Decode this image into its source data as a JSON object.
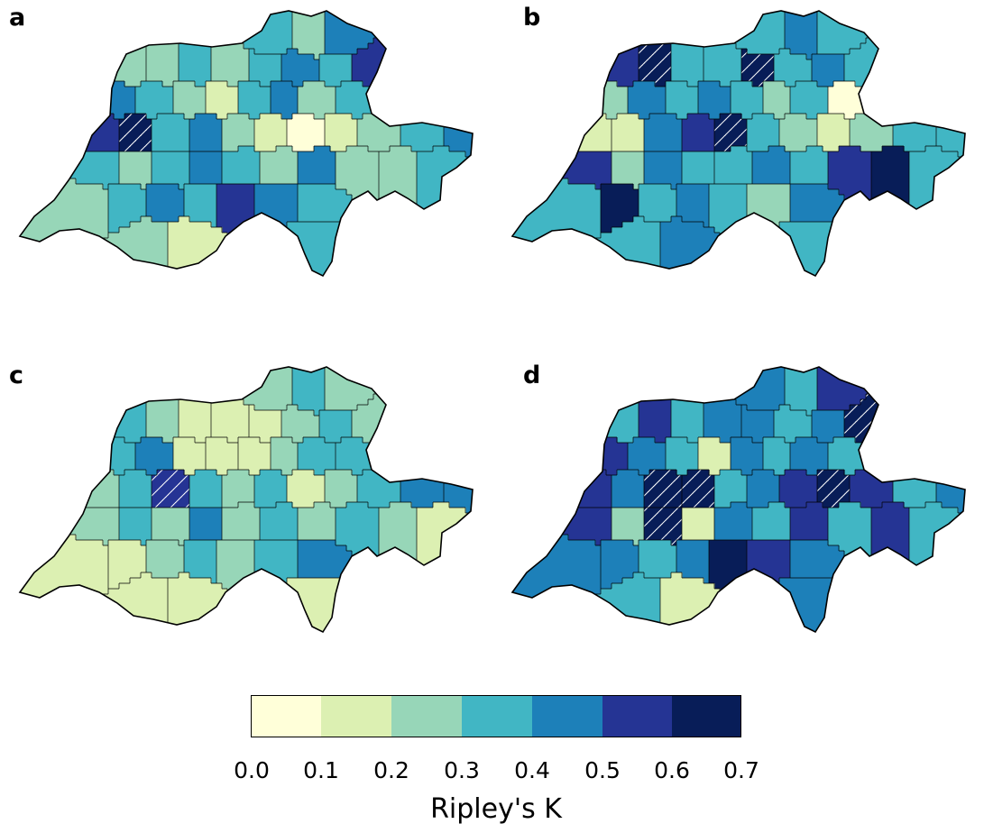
{
  "panels": [
    {
      "label": "a",
      "values": [
        0.3,
        0.2,
        0.4,
        0.2,
        0.2,
        0.3,
        0.2,
        0.3,
        0.4,
        0.3,
        0.5,
        0.4,
        0.3,
        0.2,
        0.1,
        0.3,
        0.4,
        0.2,
        0.3,
        0.5,
        0.6,
        0.3,
        0.4,
        0.2,
        0.1,
        0.0,
        0.1,
        0.2,
        0.3,
        0.4,
        0.3,
        0.2,
        0.3,
        0.4
      ],
      "hatched": [
        20
      ]
    },
    {
      "label": "b",
      "values": [
        0.3,
        0.4,
        0.3,
        0.5,
        0.6,
        0.3,
        0.3,
        0.6,
        0.3,
        0.4,
        0.3,
        0.2,
        0.4,
        0.3,
        0.4,
        0.3,
        0.2,
        0.3,
        0.0,
        0.1,
        0.1,
        0.4,
        0.5,
        0.6,
        0.3,
        0.2,
        0.1,
        0.2,
        0.3,
        0.3,
        0.5,
        0.2,
        0.4,
        0.3
      ],
      "hatched": [
        4,
        7,
        23
      ]
    },
    {
      "label": "c",
      "values": [
        0.2,
        0.3,
        0.2,
        0.3,
        0.2,
        0.1,
        0.1,
        0.1,
        0.2,
        0.3,
        0.2,
        0.3,
        0.4,
        0.1,
        0.1,
        0.1,
        0.2,
        0.3,
        0.3,
        0.2,
        0.3,
        0.5,
        0.3,
        0.2,
        0.3,
        0.1,
        0.2,
        0.3,
        0.4,
        0.4,
        0.2,
        0.3,
        0.2,
        0.4
      ],
      "hatched": [
        21
      ]
    },
    {
      "label": "d",
      "values": [
        0.4,
        0.3,
        0.5,
        0.3,
        0.5,
        0.3,
        0.4,
        0.4,
        0.3,
        0.4,
        0.6,
        0.5,
        0.4,
        0.3,
        0.1,
        0.4,
        0.3,
        0.4,
        0.3,
        0.5,
        0.4,
        0.6,
        0.7,
        0.3,
        0.4,
        0.5,
        0.7,
        0.5,
        0.3,
        0.4,
        0.5,
        0.2,
        0.6,
        0.1
      ],
      "hatched": [
        10,
        21,
        22,
        26,
        32
      ]
    }
  ],
  "colorbar": {
    "title": "Ripley's K",
    "ticks": [
      "0.0",
      "0.1",
      "0.2",
      "0.3",
      "0.4",
      "0.5",
      "0.6",
      "0.7"
    ],
    "bins": [
      {
        "from": 0.0,
        "to": 0.1,
        "color": "#ffffd9"
      },
      {
        "from": 0.1,
        "to": 0.2,
        "color": "#dcf0b2"
      },
      {
        "from": 0.2,
        "to": 0.3,
        "color": "#97d6b8"
      },
      {
        "from": 0.3,
        "to": 0.4,
        "color": "#41b6c4"
      },
      {
        "from": 0.4,
        "to": 0.5,
        "color": "#1d80b9"
      },
      {
        "from": 0.5,
        "to": 0.6,
        "color": "#253494"
      },
      {
        "from": 0.6,
        "to": 0.7,
        "color": "#081d58"
      }
    ]
  },
  "hatch_color": "#ffffff"
}
